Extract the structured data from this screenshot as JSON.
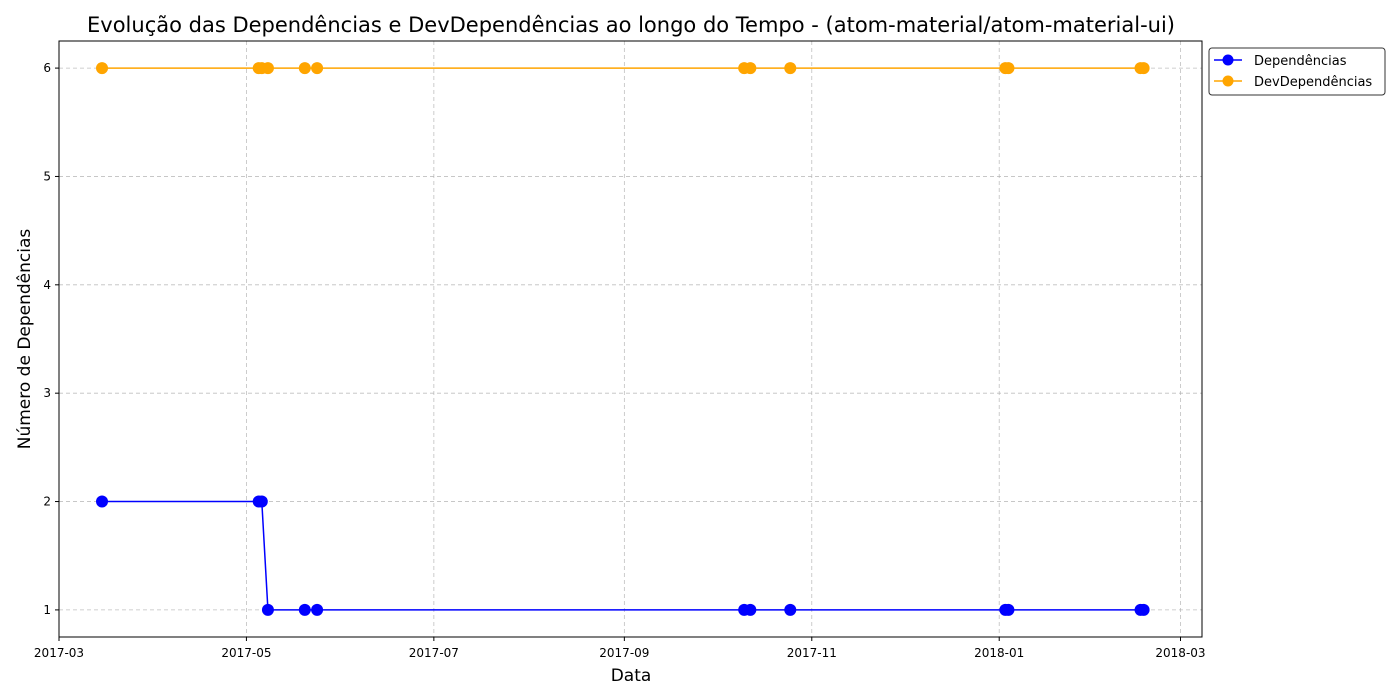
{
  "chart_data": {
    "type": "line",
    "title": "Evolução das Dependências e DevDependências ao longo do Tempo - (atom-material/atom-material-ui)",
    "xlabel": "Data",
    "ylabel": "Número de Dependências",
    "x_type": "date",
    "xlim": [
      "2017-03-01",
      "2018-03-08"
    ],
    "ylim": [
      0.75,
      6.25
    ],
    "x_ticks": [
      "2017-03",
      "2017-05",
      "2017-07",
      "2017-09",
      "2017-11",
      "2018-01",
      "2018-03"
    ],
    "y_ticks": [
      1,
      2,
      3,
      4,
      5,
      6
    ],
    "grid": true,
    "legend_position": "outside-top-right",
    "x": [
      "2017-03-15",
      "2017-05-05",
      "2017-05-06",
      "2017-05-08",
      "2017-05-20",
      "2017-05-24",
      "2017-10-10",
      "2017-10-12",
      "2017-10-25",
      "2018-01-03",
      "2018-01-04",
      "2018-02-16",
      "2018-02-17"
    ],
    "series": [
      {
        "name": "Dependências",
        "color": "#0000ff",
        "values": [
          2,
          2,
          2,
          1,
          1,
          1,
          1,
          1,
          1,
          1,
          1,
          1,
          1
        ]
      },
      {
        "name": "DevDependências",
        "color": "#ffa500",
        "values": [
          6,
          6,
          6,
          6,
          6,
          6,
          6,
          6,
          6,
          6,
          6,
          6,
          6
        ]
      }
    ]
  }
}
